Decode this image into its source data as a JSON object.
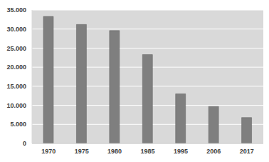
{
  "chart_data": {
    "type": "bar",
    "categories": [
      "1970",
      "1975",
      "1980",
      "1985",
      "1995",
      "2006",
      "2017"
    ],
    "values": [
      33300,
      31200,
      29600,
      23300,
      13000,
      9700,
      6800
    ],
    "color": "#7f7f7f",
    "ylim": [
      0,
      35000
    ],
    "yticks": [
      0,
      {
        "value": 5000,
        "label": "5.000"
      },
      {
        "value": 10000,
        "label": "10.000"
      },
      {
        "value": 15000,
        "label": "15.000"
      },
      {
        "value": 20000,
        "label": "20.000"
      },
      {
        "value": 25000,
        "label": "25.000"
      },
      {
        "value": 30000,
        "label": "30.000"
      },
      {
        "value": 35000,
        "label": "35.000"
      }
    ],
    "grid": true
  }
}
